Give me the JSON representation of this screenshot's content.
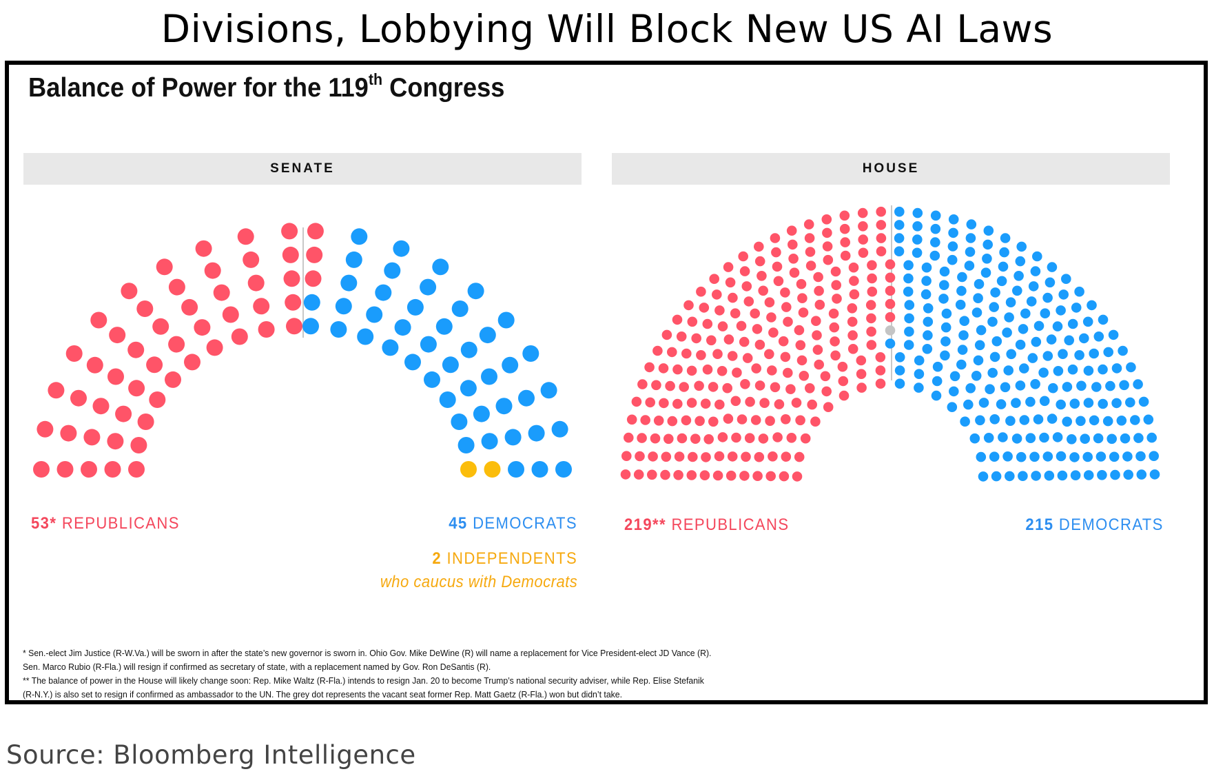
{
  "header": {
    "title": "Divisions, Lobbying Will Block New US AI Laws"
  },
  "figure": {
    "subtitle_prefix": "Balance of Power for the 119",
    "subtitle_sup": "th",
    "subtitle_suffix": " Congress"
  },
  "chart_data": [
    {
      "type": "parliament",
      "title": "SENATE",
      "total_seats": 100,
      "rows": 5,
      "seats_per_row": 20,
      "series": [
        {
          "name": "REPUBLICANS",
          "count_label": "53*",
          "value": 53,
          "color": "#ff5468"
        },
        {
          "name": "DEMOCRATS",
          "count_label": "45",
          "value": 45,
          "color": "#1a9cfc"
        },
        {
          "name": "INDEPENDENTS",
          "count_label": "2",
          "value": 2,
          "color": "#fbbd0b",
          "note": "who caucus with Democrats"
        }
      ]
    },
    {
      "type": "parliament",
      "title": "HOUSE",
      "total_seats": 435,
      "rows": 14,
      "series": [
        {
          "name": "REPUBLICANS",
          "count_label": "219**",
          "value": 219,
          "color": "#ff5468"
        },
        {
          "name": "VACANT",
          "count_label": "",
          "value": 1,
          "color": "#c4c4c4"
        },
        {
          "name": "DEMOCRATS",
          "count_label": "215",
          "value": 215,
          "color": "#1a9cfc"
        }
      ]
    }
  ],
  "footnotes": [
    "* Sen.-elect Jim Justice (R-W.Va.) will be sworn in after the state’s new governor is sworn in. Ohio Gov. Mike DeWine (R) will name a replacement for Vice President-elect JD Vance (R).",
    "Sen. Marco Rubio (R-Fla.) will resign if confirmed as secretary of state, with a replacement named by Gov. Ron DeSantis (R).",
    "** The balance of power in the House will likely change soon: Rep. Mike Waltz (R-Fla.) intends to resign Jan. 20 to become Trump’s national security adviser, while Rep. Elise Stefanik",
    "(R-N.Y.) is also set to resign if confirmed as ambassador to the UN. The grey dot represents the vacant seat former Rep. Matt Gaetz (R-Fla.) won but didn’t take."
  ],
  "source": "Source: Bloomberg Intelligence"
}
